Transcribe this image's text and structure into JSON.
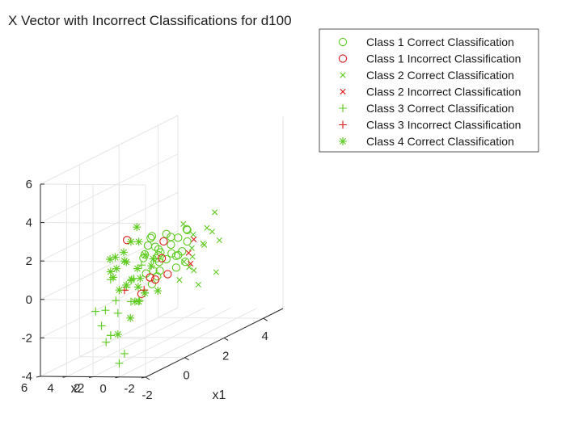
{
  "chart_data": {
    "type": "scatter",
    "title": "X Vector with Incorrect Classifications for d100",
    "xlabel": "x1",
    "ylabel": "x2",
    "zlabel": "",
    "xlim": [
      -2,
      5
    ],
    "ylim": [
      -2,
      6
    ],
    "zlim": [
      -4,
      6
    ],
    "x_ticks": [
      "-2",
      "0",
      "2",
      "4"
    ],
    "y_ticks": [
      "-2",
      "0",
      "2",
      "4",
      "6"
    ],
    "z_ticks": [
      "-4",
      "-2",
      "0",
      "2",
      "4",
      "6"
    ],
    "grid": true,
    "legend_position": "outside-top-right",
    "colors": {
      "correct": "#5ecb1f",
      "incorrect": "#e01a1a"
    },
    "series": [
      {
        "name": "Class 1 Correct Classification",
        "marker": "circle",
        "color": "#5ecb1f",
        "points": [
          [
            0.0,
            0.5,
            2.3
          ],
          [
            0.2,
            0.9,
            2.1
          ],
          [
            -0.1,
            0.1,
            1.8
          ],
          [
            0.5,
            0.6,
            1.2
          ],
          [
            0.8,
            0.2,
            1.0
          ],
          [
            1.1,
            0.7,
            1.7
          ],
          [
            0.4,
            0.0,
            0.9
          ],
          [
            0.1,
            1.2,
            1.3
          ],
          [
            1.4,
            0.3,
            0.8
          ],
          [
            0.7,
            1.0,
            0.6
          ],
          [
            1.0,
            1.5,
            1.1
          ],
          [
            0.3,
            1.4,
            0.2
          ],
          [
            1.6,
            0.9,
            0.5
          ],
          [
            0.9,
            0.4,
            1.4
          ],
          [
            1.2,
            1.8,
            0.7
          ],
          [
            0.6,
            1.7,
            1.5
          ],
          [
            1.8,
            1.2,
            1.3
          ],
          [
            0.2,
            0.7,
            0.4
          ],
          [
            1.5,
            0.1,
            1.9
          ],
          [
            0.5,
            1.9,
            0.9
          ],
          [
            1.3,
            0.6,
            0.0
          ],
          [
            0.8,
            1.3,
            -0.2
          ],
          [
            2.0,
            0.8,
            1.6
          ],
          [
            1.9,
            1.5,
            0.3
          ],
          [
            0.4,
            1.1,
            -0.4
          ],
          [
            1.7,
            0.5,
            0.1
          ],
          [
            0.1,
            0.3,
            1.1
          ],
          [
            1.0,
            0.9,
            1.9
          ],
          [
            2.2,
            1.1,
            0.9
          ],
          [
            0.6,
            0.8,
            0.2
          ]
        ]
      },
      {
        "name": "Class 1 Incorrect Classification",
        "marker": "circle",
        "color": "#e01a1a",
        "points": [
          [
            -0.6,
            1.5,
            2.4
          ],
          [
            0.5,
            0.5,
            0.9
          ],
          [
            1.6,
            1.7,
            -0.5
          ],
          [
            2.0,
            2.6,
            1.0
          ],
          [
            -0.2,
            1.0,
            -0.6
          ],
          [
            -0.3,
            -0.2,
            0.2
          ],
          [
            0.1,
            0.8,
            0.1
          ]
        ]
      },
      {
        "name": "Class 2 Correct Classification",
        "marker": "x",
        "color": "#5ecb1f",
        "points": [
          [
            2.5,
            1.2,
            0.4
          ],
          [
            3.0,
            0.8,
            1.2
          ],
          [
            2.8,
            1.6,
            -0.2
          ],
          [
            3.4,
            1.0,
            0.8
          ],
          [
            2.2,
            0.6,
            -0.6
          ],
          [
            3.6,
            1.9,
            0.0
          ],
          [
            2.6,
            2.0,
            1.6
          ],
          [
            3.2,
            0.4,
            -1.2
          ],
          [
            2.0,
            1.4,
            -1.0
          ],
          [
            3.8,
            1.4,
            1.6
          ],
          [
            2.4,
            0.2,
            0.7
          ],
          [
            3.1,
            2.3,
            -0.9
          ],
          [
            2.7,
            1.0,
            -1.6
          ],
          [
            3.5,
            0.6,
            0.3
          ],
          [
            1.9,
            0.9,
            0.0
          ],
          [
            2.9,
            1.7,
            0.9
          ]
        ]
      },
      {
        "name": "Class 2 Incorrect Classification",
        "marker": "x",
        "color": "#e01a1a",
        "points": [
          [
            2.4,
            1.3,
            0.2
          ],
          [
            2.8,
            1.5,
            0.7
          ],
          [
            2.1,
            0.7,
            -0.2
          ]
        ]
      },
      {
        "name": "Class 3 Correct Classification",
        "marker": "plus",
        "color": "#5ecb1f",
        "points": [
          [
            -2.0,
            1.8,
            -0.6
          ],
          [
            -1.9,
            1.5,
            -1.4
          ],
          [
            -1.8,
            1.3,
            -2.3
          ],
          [
            -1.7,
            1.1,
            -2.0
          ],
          [
            -1.5,
            1.4,
            -2.1
          ],
          [
            -1.2,
            0.8,
            -3.2
          ],
          [
            -1.4,
            0.9,
            -3.6
          ],
          [
            -1.0,
            1.6,
            -1.2
          ],
          [
            -0.9,
            1.9,
            -0.6
          ],
          [
            -0.8,
            0.9,
            0.4
          ],
          [
            -1.1,
            2.0,
            0.6
          ],
          [
            -0.6,
            1.2,
            -0.8
          ],
          [
            -0.5,
            1.7,
            -0.1
          ],
          [
            -0.3,
            0.6,
            -0.5
          ],
          [
            -0.2,
            1.0,
            0.9
          ],
          [
            -1.3,
            2.1,
            -0.9
          ],
          [
            -0.7,
            0.4,
            -0.7
          ],
          [
            -0.4,
            1.3,
            0.3
          ]
        ]
      },
      {
        "name": "Class 3 Incorrect Classification",
        "marker": "plus",
        "color": "#e01a1a",
        "points": [
          [
            -1.0,
            1.1,
            0.0
          ],
          [
            -0.4,
            0.5,
            -0.3
          ]
        ]
      },
      {
        "name": "Class 4 Correct Classification",
        "marker": "asterisk",
        "color": "#5ecb1f",
        "points": [
          [
            -1.0,
            2.2,
            1.6
          ],
          [
            -0.6,
            2.4,
            1.5
          ],
          [
            -0.3,
            2.0,
            1.1
          ],
          [
            0.0,
            2.6,
            1.0
          ],
          [
            0.4,
            2.1,
            1.8
          ],
          [
            0.9,
            3.0,
            2.3
          ],
          [
            -0.2,
            2.9,
            0.7
          ],
          [
            0.2,
            1.7,
            0.0
          ],
          [
            -0.8,
            1.8,
            -0.1
          ],
          [
            -0.5,
            2.7,
            0.4
          ],
          [
            0.6,
            2.5,
            0.3
          ],
          [
            0.0,
            1.5,
            -1.1
          ],
          [
            -0.4,
            1.2,
            -0.9
          ],
          [
            -0.9,
            0.8,
            -1.5
          ],
          [
            0.3,
            2.0,
            -0.5
          ],
          [
            -0.1,
            2.3,
            -0.2
          ],
          [
            0.8,
            2.2,
            0.9
          ],
          [
            1.0,
            1.9,
            0.6
          ],
          [
            -0.7,
            2.6,
            0.8
          ],
          [
            0.5,
            1.3,
            0.5
          ],
          [
            -0.3,
            1.6,
            0.2
          ],
          [
            0.1,
            2.8,
            1.4
          ],
          [
            -1.2,
            1.3,
            -2.2
          ],
          [
            0.7,
            1.1,
            -0.9
          ],
          [
            -0.5,
            0.3,
            -0.4
          ],
          [
            0.2,
            2.4,
            1.9
          ]
        ]
      }
    ]
  }
}
